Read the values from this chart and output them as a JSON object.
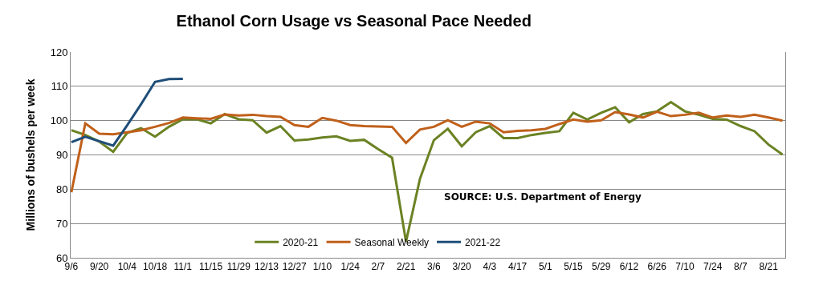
{
  "chart_data": {
    "type": "line",
    "title": "Ethanol Corn Usage vs Seasonal Pace Needed",
    "ylabel": "Millions of bushels per week",
    "categories": [
      "9/6",
      null,
      "9/20",
      null,
      "10/4",
      null,
      "10/18",
      null,
      "11/1",
      null,
      "11/15",
      null,
      "11/29",
      null,
      "12/13",
      null,
      "12/27",
      null,
      "1/10",
      null,
      "1/24",
      null,
      "2/7",
      null,
      "2/21",
      null,
      "3/6",
      null,
      "3/20",
      null,
      "4/3",
      null,
      "4/17",
      null,
      "5/1",
      null,
      "5/15",
      null,
      "5/29",
      null,
      "6/12",
      null,
      "6/26",
      null,
      "7/10",
      null,
      "7/24",
      null,
      "8/7",
      null,
      "8/21",
      null
    ],
    "series": [
      {
        "name": "2020-21",
        "color": "#6b8223",
        "values": [
          97.2,
          95.8,
          93.9,
          90.9,
          96.4,
          97.8,
          95.3,
          98.2,
          100.4,
          100.4,
          99.2,
          101.9,
          100.4,
          100.1,
          96.5,
          98.4,
          94.2,
          94.5,
          95.1,
          95.4,
          94.1,
          94.4,
          91.7,
          89.2,
          64.7,
          83.0,
          94.3,
          97.6,
          92.5,
          96.6,
          98.4,
          94.9,
          94.9,
          95.8,
          96.4,
          96.9,
          102.3,
          100.3,
          102.3,
          103.9,
          99.5,
          101.9,
          102.7,
          105.4,
          102.7,
          101.7,
          100.5,
          100.3,
          98.4,
          96.9,
          93.0,
          90.1
        ]
      },
      {
        "name": "Seasonal Weekly",
        "color": "#c0601a",
        "values": [
          79.1,
          99.2,
          96.2,
          96.0,
          96.6,
          97.2,
          98.2,
          99.3,
          100.9,
          100.7,
          100.5,
          101.8,
          101.5,
          101.7,
          101.3,
          101.1,
          98.7,
          98.2,
          100.8,
          100.0,
          98.7,
          98.4,
          98.3,
          98.2,
          93.5,
          97.4,
          98.2,
          100.1,
          98.2,
          99.7,
          99.2,
          96.6,
          97.0,
          97.2,
          97.6,
          99.0,
          100.3,
          99.7,
          100.1,
          102.5,
          101.8,
          100.9,
          102.6,
          101.3,
          101.7,
          102.3,
          100.9,
          101.5,
          101.1,
          101.7,
          100.9,
          100.0
        ]
      },
      {
        "name": "2021-22",
        "color": "#1f4e79",
        "values": [
          93.7,
          95.3,
          94.0,
          92.7,
          98.6,
          104.8,
          111.3,
          112.1,
          112.2,
          null,
          null,
          null,
          null,
          null,
          null,
          null,
          null,
          null,
          null,
          null,
          null,
          null,
          null,
          null,
          null,
          null,
          null,
          null,
          null,
          null,
          null,
          null,
          null,
          null,
          null,
          null,
          null,
          null,
          null,
          null,
          null,
          null,
          null,
          null,
          null,
          null,
          null,
          null,
          null,
          null,
          null,
          null
        ]
      }
    ],
    "ylim": [
      60,
      120
    ],
    "yticks": [
      60,
      70,
      80,
      90,
      100,
      110,
      120
    ],
    "grid": "y",
    "legend": "bottom",
    "marker": "none",
    "annotations": [
      "SOURCE: U.S. Department of Energy"
    ]
  }
}
